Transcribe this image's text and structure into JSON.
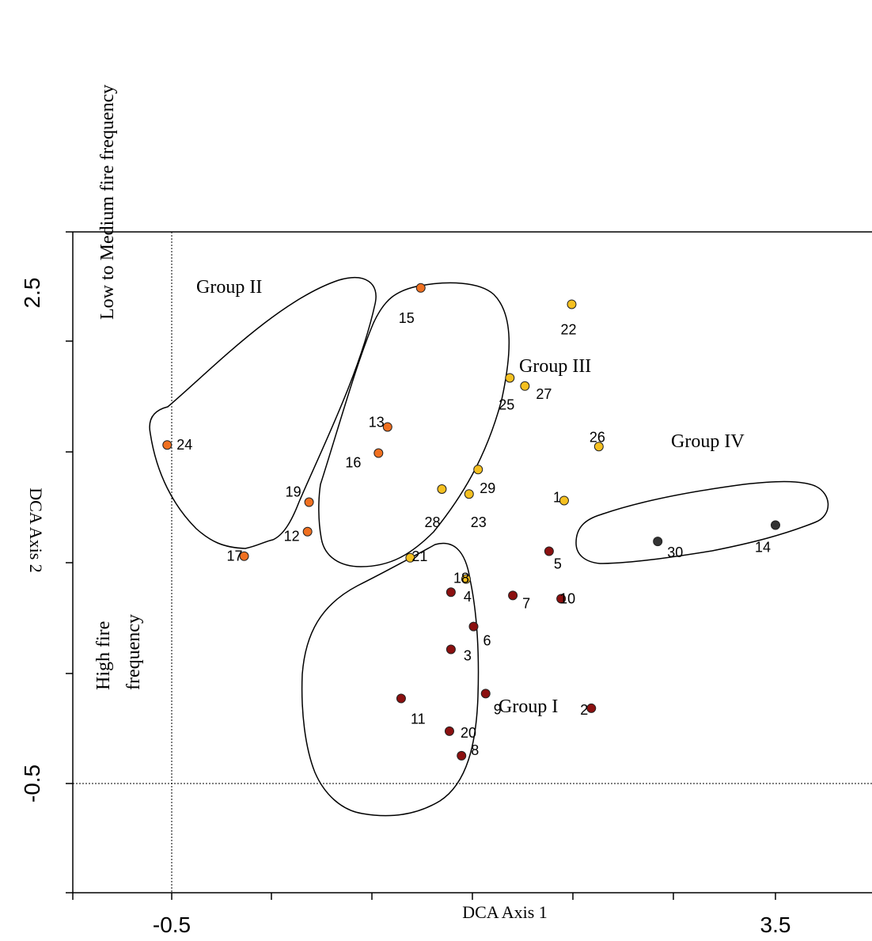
{
  "chart_data": {
    "type": "scatter",
    "title": "",
    "xlabel": "DCA Axis 1",
    "ylabel": "DCA Axis 2",
    "xlim": [
      -1.5,
      6.5
    ],
    "ylim": [
      -2.0,
      3.4
    ],
    "x_tick_labels": [
      {
        "value": -0.5,
        "label": "-0.5"
      },
      {
        "value": 3.5,
        "label": "3.5"
      }
    ],
    "y_tick_labels": [
      {
        "value": -0.5,
        "label": "-0.5"
      },
      {
        "value": 2.5,
        "label": "2.5"
      }
    ],
    "reference_lines": {
      "x": -0.5,
      "y": -0.5
    },
    "annotations": {
      "top": "Low to Medium fire frequency",
      "bottom": "High fire frequency"
    },
    "groups": [
      {
        "name": "Group I",
        "color": "#8b1010",
        "labels": [
          "2",
          "3",
          "4",
          "5",
          "6",
          "7",
          "8",
          "9",
          "10",
          "11",
          "20"
        ]
      },
      {
        "name": "Group II",
        "color": "#f07020",
        "labels": [
          "12",
          "13",
          "15",
          "16",
          "17",
          "19",
          "24"
        ]
      },
      {
        "name": "Group III",
        "color": "#f5c020",
        "labels": [
          "1",
          "18",
          "21",
          "22",
          "23",
          "25",
          "26",
          "27",
          "28",
          "29"
        ]
      },
      {
        "name": "Group IV",
        "color": "#333333",
        "labels": [
          "14",
          "30"
        ]
      }
    ],
    "points": [
      {
        "label": "1",
        "x": 2.1,
        "y": 1.23,
        "group": "Group III"
      },
      {
        "label": "2",
        "x": 2.28,
        "y": -0.04,
        "group": "Group I"
      },
      {
        "label": "3",
        "x": 1.35,
        "y": 0.32,
        "group": "Group I"
      },
      {
        "label": "4",
        "x": 1.35,
        "y": 0.67,
        "group": "Group I"
      },
      {
        "label": "5",
        "x": 2.0,
        "y": 0.92,
        "group": "Group I"
      },
      {
        "label": "6",
        "x": 1.5,
        "y": 0.46,
        "group": "Group I"
      },
      {
        "label": "7",
        "x": 1.76,
        "y": 0.65,
        "group": "Group I"
      },
      {
        "label": "8",
        "x": 1.42,
        "y": -0.33,
        "group": "Group I"
      },
      {
        "label": "9",
        "x": 1.58,
        "y": 0.05,
        "group": "Group I"
      },
      {
        "label": "10",
        "x": 2.08,
        "y": 0.63,
        "group": "Group I"
      },
      {
        "label": "11",
        "x": 1.02,
        "y": 0.02,
        "group": "Group I"
      },
      {
        "label": "12",
        "x": 0.4,
        "y": 1.04,
        "group": "Group II"
      },
      {
        "label": "13",
        "x": 0.93,
        "y": 1.68,
        "group": "Group II"
      },
      {
        "label": "14",
        "x": 3.5,
        "y": 1.08,
        "group": "Group IV"
      },
      {
        "label": "15",
        "x": 1.15,
        "y": 2.53,
        "group": "Group II"
      },
      {
        "label": "16",
        "x": 0.87,
        "y": 1.52,
        "group": "Group II"
      },
      {
        "label": "17",
        "x": -0.02,
        "y": 0.89,
        "group": "Group II"
      },
      {
        "label": "18",
        "x": 1.45,
        "y": 0.75,
        "group": "Group III"
      },
      {
        "label": "19",
        "x": 0.41,
        "y": 1.22,
        "group": "Group II"
      },
      {
        "label": "20",
        "x": 1.34,
        "y": -0.18,
        "group": "Group I"
      },
      {
        "label": "21",
        "x": 1.08,
        "y": 0.88,
        "group": "Group III"
      },
      {
        "label": "22",
        "x": 2.15,
        "y": 2.43,
        "group": "Group III"
      },
      {
        "label": "23",
        "x": 1.47,
        "y": 1.27,
        "group": "Group III"
      },
      {
        "label": "24",
        "x": -0.53,
        "y": 1.57,
        "group": "Group II"
      },
      {
        "label": "25",
        "x": 1.74,
        "y": 1.98,
        "group": "Group III"
      },
      {
        "label": "26",
        "x": 2.33,
        "y": 1.56,
        "group": "Group III"
      },
      {
        "label": "27",
        "x": 1.84,
        "y": 1.93,
        "group": "Group III"
      },
      {
        "label": "28",
        "x": 1.29,
        "y": 1.3,
        "group": "Group III"
      },
      {
        "label": "29",
        "x": 1.53,
        "y": 1.42,
        "group": "Group III"
      },
      {
        "label": "30",
        "x": 2.72,
        "y": 0.98,
        "group": "Group IV"
      }
    ]
  }
}
